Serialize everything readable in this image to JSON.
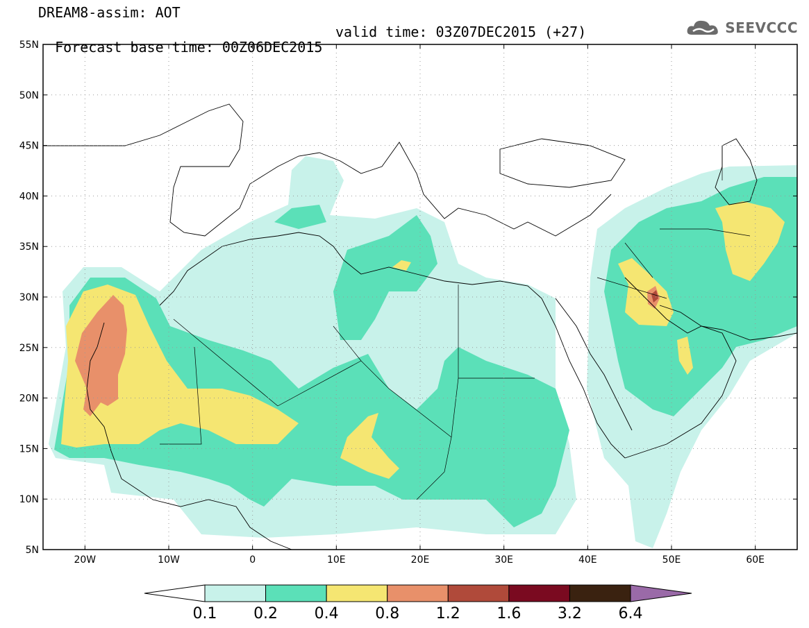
{
  "title": {
    "line1": "DREAM8-assim: AOT",
    "base": "Forecast base time: 00Z06DEC2015",
    "valid": "valid time: 03Z07DEC2015 (+27)"
  },
  "logo": {
    "text": "SEEVCCC",
    "icon": "cloud-logo-icon"
  },
  "map": {
    "lat_labels": [
      "55N",
      "50N",
      "45N",
      "40N",
      "35N",
      "30N",
      "25N",
      "20N",
      "15N",
      "10N",
      "5N"
    ],
    "lon_labels": [
      "20W",
      "10W",
      "0",
      "10E",
      "20E",
      "30E",
      "40E",
      "50E",
      "60E"
    ],
    "lat_range": [
      5,
      55
    ],
    "lon_range": [
      -25,
      65
    ],
    "gridlines": "dotted"
  },
  "colorbar": {
    "labels": [
      "0.1",
      "0.2",
      "0.4",
      "0.8",
      "1.2",
      "1.6",
      "3.2",
      "6.4"
    ],
    "colors": [
      "#c8f2ea",
      "#5be0b8",
      "#f5e672",
      "#e8906a",
      "#b04a3a",
      "#7a0a20",
      "#3a2210",
      "#9a6aa8"
    ],
    "low_color": "#ffffff"
  }
}
